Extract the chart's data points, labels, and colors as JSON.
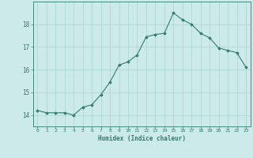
{
  "x": [
    0,
    1,
    2,
    3,
    4,
    5,
    6,
    7,
    8,
    9,
    10,
    11,
    12,
    13,
    14,
    15,
    16,
    17,
    18,
    19,
    20,
    21,
    22,
    23
  ],
  "y": [
    14.2,
    14.1,
    14.1,
    14.1,
    14.0,
    14.35,
    14.45,
    14.9,
    15.45,
    16.2,
    16.35,
    16.65,
    17.45,
    17.55,
    17.6,
    18.5,
    18.2,
    18.0,
    17.6,
    17.4,
    16.95,
    16.85,
    16.75,
    16.1
  ],
  "xlabel": "Humidex (Indice chaleur)",
  "ylim": [
    13.5,
    19.0
  ],
  "xlim": [
    -0.5,
    23.5
  ],
  "line_color": "#2e7d6e",
  "bg_color": "#cceae8",
  "grid_color": "#aad4d0",
  "text_color": "#2e7d6e",
  "marker": "D",
  "marker_size": 1.8,
  "line_width": 0.8,
  "yticks": [
    14,
    15,
    16,
    17,
    18
  ],
  "xticks": [
    0,
    1,
    2,
    3,
    4,
    5,
    6,
    7,
    8,
    9,
    10,
    11,
    12,
    13,
    14,
    15,
    16,
    17,
    18,
    19,
    20,
    21,
    22,
    23
  ],
  "xlabel_fontsize": 5.5,
  "xtick_fontsize": 4.5,
  "ytick_fontsize": 5.5
}
